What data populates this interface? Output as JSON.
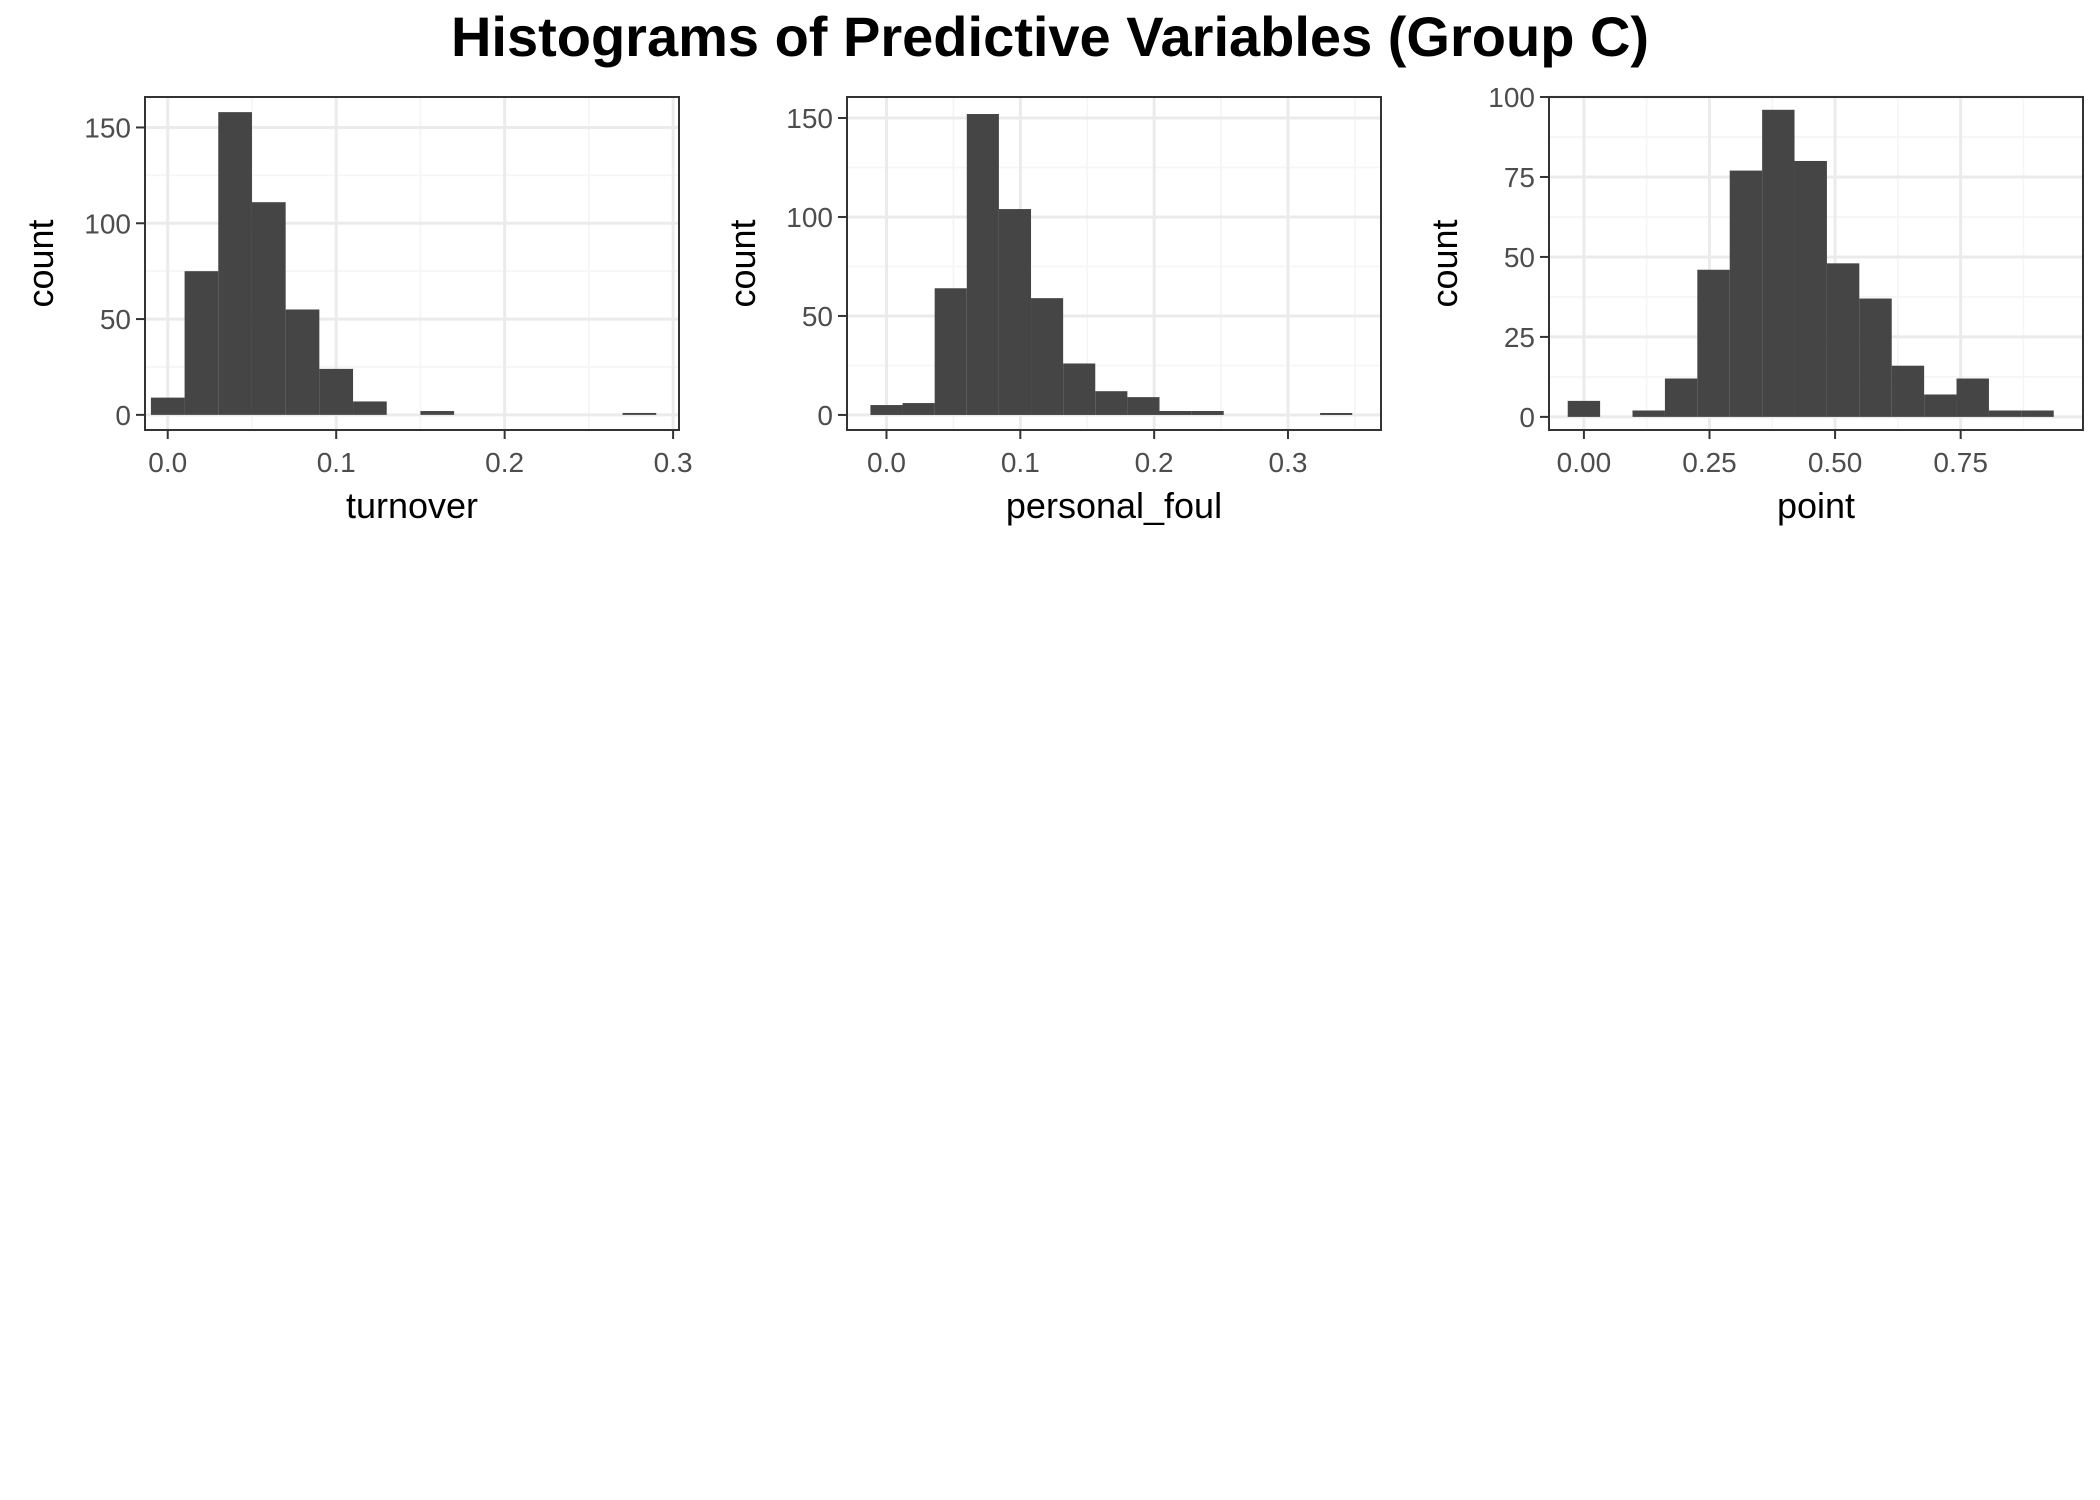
{
  "title": "Histograms of Predictive Variables (Group C)",
  "colors": {
    "bar": "#454545",
    "grid_major": "#ebebeb",
    "grid_minor": "#f5f5f5",
    "panel_border": "#333333",
    "tick_text": "#4d4d4d"
  },
  "chart_data": [
    {
      "type": "bar",
      "xlabel": "turnover",
      "ylabel": "count",
      "xlim": [
        -0.0135,
        0.3035
      ],
      "ylim": [
        -7.9,
        165.9
      ],
      "xticks": [
        0.0,
        0.1,
        0.2,
        0.3
      ],
      "xtick_labels": [
        "0.0",
        "0.1",
        "0.2",
        "0.3"
      ],
      "yticks": [
        0,
        50,
        100,
        150
      ],
      "ytick_labels": [
        "0",
        "50",
        "100",
        "150"
      ],
      "grid": true,
      "bin_width": 0.02,
      "bin_centers": [
        0.0,
        0.02,
        0.04,
        0.06,
        0.08,
        0.1,
        0.12,
        0.14,
        0.16,
        0.18,
        0.2,
        0.22,
        0.24,
        0.26,
        0.28
      ],
      "values": [
        9,
        75,
        158,
        111,
        55,
        24,
        7,
        0,
        2,
        0,
        0,
        0,
        0,
        0,
        1
      ]
    },
    {
      "type": "bar",
      "xlabel": "personal_foul",
      "ylabel": "count",
      "xlim": [
        -0.0295,
        0.3695
      ],
      "ylim": [
        -7.6,
        160.6
      ],
      "xticks": [
        0.0,
        0.1,
        0.2,
        0.3
      ],
      "xtick_labels": [
        "0.0",
        "0.1",
        "0.2",
        "0.3"
      ],
      "yticks": [
        0,
        50,
        100,
        150
      ],
      "ytick_labels": [
        "0",
        "50",
        "100",
        "150"
      ],
      "grid": true,
      "bin_width": 0.024,
      "bin_centers": [
        0.0,
        0.024,
        0.048,
        0.072,
        0.096,
        0.12,
        0.144,
        0.168,
        0.192,
        0.216,
        0.24,
        0.264,
        0.288,
        0.312,
        0.336
      ],
      "values": [
        5,
        6,
        64,
        152,
        104,
        59,
        26,
        12,
        9,
        2,
        2,
        0,
        0,
        0,
        1
      ]
    },
    {
      "type": "bar",
      "xlabel": "point",
      "ylabel": "count",
      "xlim": [
        -0.0695,
        0.9935
      ],
      "ylim": [
        -4.1,
        100.0
      ],
      "xticks": [
        0.0,
        0.25,
        0.5,
        0.75
      ],
      "xtick_labels": [
        "0.00",
        "0.25",
        "0.50",
        "0.75"
      ],
      "yticks": [
        0,
        25,
        50,
        75,
        100
      ],
      "ytick_labels": [
        "0",
        "25",
        "50",
        "75",
        "100"
      ],
      "grid": true,
      "bin_width": 0.0645,
      "bin_centers": [
        0.0,
        0.0645,
        0.129,
        0.1935,
        0.258,
        0.3225,
        0.387,
        0.4515,
        0.516,
        0.5805,
        0.645,
        0.7095,
        0.774,
        0.8385,
        0.903
      ],
      "values": [
        5,
        0,
        2,
        12,
        46,
        77,
        96,
        80,
        48,
        37,
        16,
        7,
        12,
        2,
        2
      ]
    }
  ]
}
